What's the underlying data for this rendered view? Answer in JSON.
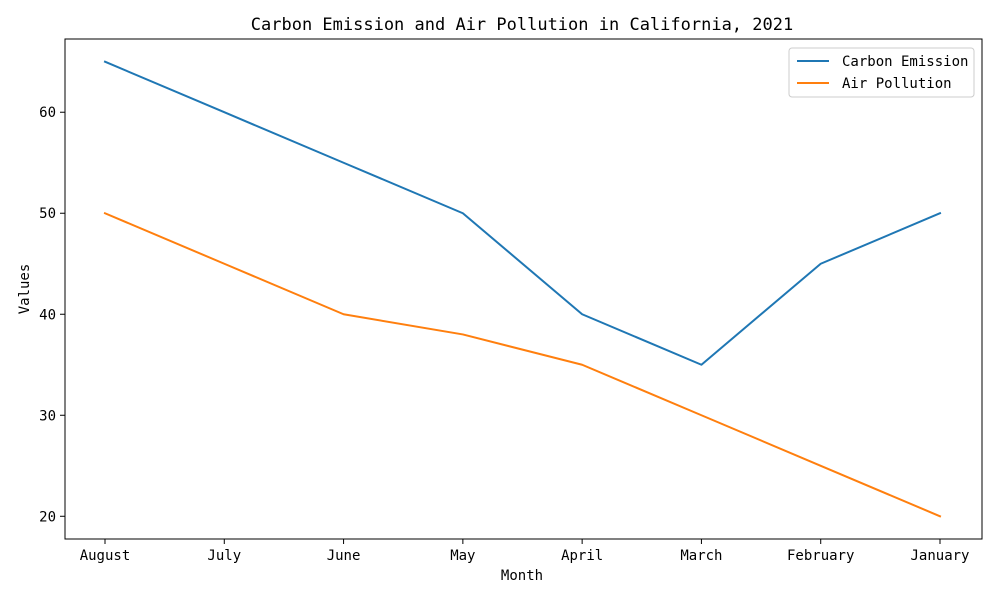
{
  "chart_data": {
    "type": "line",
    "title": "Carbon Emission and Air Pollution in California, 2021",
    "xlabel": "Month",
    "ylabel": "Values",
    "categories": [
      "August",
      "July",
      "June",
      "May",
      "April",
      "March",
      "February",
      "January"
    ],
    "series": [
      {
        "name": "Carbon Emission",
        "color": "#1f77b4",
        "values": [
          65,
          60,
          55,
          50,
          40,
          35,
          45,
          50
        ]
      },
      {
        "name": "Air Pollution",
        "color": "#ff7f0e",
        "values": [
          50,
          45,
          40,
          38,
          35,
          30,
          25,
          20
        ]
      }
    ],
    "ylim": [
      17.75,
      67.25
    ],
    "yticks": [
      20,
      30,
      40,
      50,
      60
    ],
    "grid": false,
    "legend_position": "top-right"
  }
}
